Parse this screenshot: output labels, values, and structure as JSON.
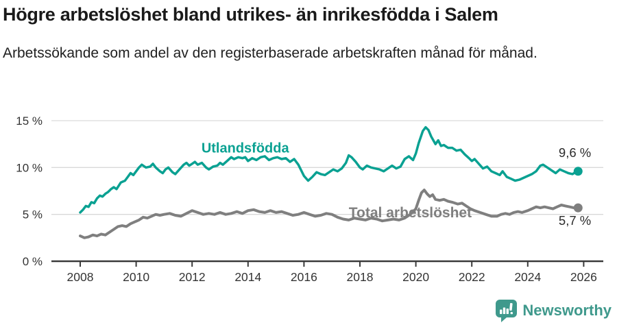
{
  "header": {
    "title": "Högre arbetslöshet bland utrikes- än inrikesfödda i Salem",
    "subtitle": "Arbetssökande som andel av den registerbaserade arbetskraften månad för månad."
  },
  "chart_data": {
    "type": "line",
    "grid": true,
    "legend_position": "inline-labels",
    "x_ticks": [
      2008,
      2010,
      2012,
      2014,
      2016,
      2018,
      2020,
      2022,
      2024,
      2026
    ],
    "xlim": [
      2007.0,
      2026.7
    ],
    "ylim": [
      0,
      15.8
    ],
    "y_ticks": [
      {
        "value": 0,
        "label": "0 %"
      },
      {
        "value": 5,
        "label": "5 %"
      },
      {
        "value": 10,
        "label": "10 %"
      },
      {
        "value": 15,
        "label": "15 %"
      }
    ],
    "series": [
      {
        "id": "utlandsfodda",
        "name": "Utlandsfödda",
        "color": "#0aa192",
        "end_label": "9,6 %",
        "end_value": 9.6,
        "label_anchor": {
          "x": 2013.9,
          "y": 11.6
        },
        "points": [
          [
            2008.0,
            5.2
          ],
          [
            2008.1,
            5.5
          ],
          [
            2008.2,
            5.9
          ],
          [
            2008.3,
            5.8
          ],
          [
            2008.4,
            6.3
          ],
          [
            2008.5,
            6.2
          ],
          [
            2008.6,
            6.7
          ],
          [
            2008.7,
            7.0
          ],
          [
            2008.8,
            6.9
          ],
          [
            2008.9,
            7.2
          ],
          [
            2009.0,
            7.4
          ],
          [
            2009.1,
            7.7
          ],
          [
            2009.2,
            7.9
          ],
          [
            2009.3,
            7.7
          ],
          [
            2009.45,
            8.4
          ],
          [
            2009.6,
            8.6
          ],
          [
            2009.7,
            9.0
          ],
          [
            2009.8,
            9.4
          ],
          [
            2009.9,
            9.2
          ],
          [
            2010.0,
            9.6
          ],
          [
            2010.1,
            10.0
          ],
          [
            2010.2,
            10.3
          ],
          [
            2010.35,
            10.0
          ],
          [
            2010.5,
            10.1
          ],
          [
            2010.6,
            10.4
          ],
          [
            2010.7,
            10.0
          ],
          [
            2010.85,
            9.6
          ],
          [
            2010.95,
            9.4
          ],
          [
            2011.05,
            9.8
          ],
          [
            2011.15,
            10.0
          ],
          [
            2011.3,
            9.5
          ],
          [
            2011.4,
            9.3
          ],
          [
            2011.55,
            9.8
          ],
          [
            2011.7,
            10.3
          ],
          [
            2011.8,
            10.5
          ],
          [
            2011.9,
            10.2
          ],
          [
            2012.0,
            10.4
          ],
          [
            2012.1,
            10.6
          ],
          [
            2012.2,
            10.3
          ],
          [
            2012.35,
            10.5
          ],
          [
            2012.5,
            10.0
          ],
          [
            2012.6,
            9.8
          ],
          [
            2012.75,
            10.1
          ],
          [
            2012.9,
            10.2
          ],
          [
            2013.0,
            10.5
          ],
          [
            2013.1,
            10.3
          ],
          [
            2013.25,
            10.7
          ],
          [
            2013.4,
            11.1
          ],
          [
            2013.5,
            10.9
          ],
          [
            2013.65,
            11.1
          ],
          [
            2013.8,
            11.0
          ],
          [
            2013.9,
            11.1
          ],
          [
            2014.0,
            10.7
          ],
          [
            2014.15,
            11.0
          ],
          [
            2014.3,
            10.8
          ],
          [
            2014.45,
            11.1
          ],
          [
            2014.6,
            11.2
          ],
          [
            2014.75,
            10.8
          ],
          [
            2014.9,
            11.0
          ],
          [
            2015.05,
            11.1
          ],
          [
            2015.2,
            10.9
          ],
          [
            2015.35,
            11.0
          ],
          [
            2015.5,
            10.6
          ],
          [
            2015.65,
            10.9
          ],
          [
            2015.8,
            10.3
          ],
          [
            2015.9,
            9.7
          ],
          [
            2016.0,
            9.1
          ],
          [
            2016.15,
            8.6
          ],
          [
            2016.3,
            9.0
          ],
          [
            2016.45,
            9.5
          ],
          [
            2016.6,
            9.3
          ],
          [
            2016.75,
            9.2
          ],
          [
            2016.9,
            9.5
          ],
          [
            2017.05,
            9.8
          ],
          [
            2017.2,
            9.6
          ],
          [
            2017.35,
            9.9
          ],
          [
            2017.5,
            10.5
          ],
          [
            2017.6,
            11.3
          ],
          [
            2017.7,
            11.1
          ],
          [
            2017.85,
            10.6
          ],
          [
            2018.0,
            10.0
          ],
          [
            2018.1,
            9.8
          ],
          [
            2018.25,
            10.2
          ],
          [
            2018.4,
            10.0
          ],
          [
            2018.55,
            9.9
          ],
          [
            2018.7,
            9.8
          ],
          [
            2018.85,
            9.6
          ],
          [
            2019.0,
            9.9
          ],
          [
            2019.15,
            10.2
          ],
          [
            2019.3,
            9.9
          ],
          [
            2019.45,
            10.1
          ],
          [
            2019.6,
            10.9
          ],
          [
            2019.75,
            11.2
          ],
          [
            2019.9,
            10.8
          ],
          [
            2020.0,
            11.5
          ],
          [
            2020.1,
            12.6
          ],
          [
            2020.25,
            13.9
          ],
          [
            2020.35,
            14.3
          ],
          [
            2020.45,
            14.0
          ],
          [
            2020.55,
            13.3
          ],
          [
            2020.7,
            12.5
          ],
          [
            2020.8,
            12.9
          ],
          [
            2020.9,
            12.3
          ],
          [
            2021.0,
            12.4
          ],
          [
            2021.15,
            12.1
          ],
          [
            2021.3,
            12.1
          ],
          [
            2021.45,
            11.8
          ],
          [
            2021.6,
            11.9
          ],
          [
            2021.75,
            11.4
          ],
          [
            2021.9,
            11.0
          ],
          [
            2022.0,
            10.7
          ],
          [
            2022.1,
            10.9
          ],
          [
            2022.25,
            10.4
          ],
          [
            2022.4,
            9.9
          ],
          [
            2022.55,
            10.1
          ],
          [
            2022.7,
            9.6
          ],
          [
            2022.85,
            9.4
          ],
          [
            2023.0,
            9.2
          ],
          [
            2023.1,
            9.6
          ],
          [
            2023.25,
            9.0
          ],
          [
            2023.4,
            8.8
          ],
          [
            2023.55,
            8.6
          ],
          [
            2023.7,
            8.7
          ],
          [
            2023.85,
            8.9
          ],
          [
            2024.0,
            9.1
          ],
          [
            2024.15,
            9.3
          ],
          [
            2024.3,
            9.6
          ],
          [
            2024.45,
            10.2
          ],
          [
            2024.55,
            10.3
          ],
          [
            2024.7,
            10.0
          ],
          [
            2024.85,
            9.7
          ],
          [
            2025.0,
            9.4
          ],
          [
            2025.15,
            9.8
          ],
          [
            2025.3,
            9.6
          ],
          [
            2025.45,
            9.4
          ],
          [
            2025.6,
            9.3
          ],
          [
            2025.7,
            9.5
          ],
          [
            2025.8,
            9.6
          ]
        ]
      },
      {
        "id": "total-arbetsloshet",
        "name": "Total arbetslöshet",
        "color": "#7f7f7f",
        "end_label": "5,7 %",
        "end_value": 5.7,
        "label_anchor": {
          "x": 2019.8,
          "y": 4.7
        },
        "points": [
          [
            2008.0,
            2.7
          ],
          [
            2008.15,
            2.5
          ],
          [
            2008.3,
            2.6
          ],
          [
            2008.45,
            2.8
          ],
          [
            2008.6,
            2.7
          ],
          [
            2008.75,
            2.9
          ],
          [
            2008.9,
            2.8
          ],
          [
            2009.05,
            3.1
          ],
          [
            2009.2,
            3.4
          ],
          [
            2009.35,
            3.7
          ],
          [
            2009.5,
            3.8
          ],
          [
            2009.65,
            3.7
          ],
          [
            2009.8,
            4.0
          ],
          [
            2009.95,
            4.2
          ],
          [
            2010.1,
            4.4
          ],
          [
            2010.25,
            4.7
          ],
          [
            2010.4,
            4.6
          ],
          [
            2010.55,
            4.8
          ],
          [
            2010.7,
            5.0
          ],
          [
            2010.85,
            4.9
          ],
          [
            2011.0,
            5.0
          ],
          [
            2011.2,
            5.1
          ],
          [
            2011.4,
            4.9
          ],
          [
            2011.6,
            4.8
          ],
          [
            2011.8,
            5.1
          ],
          [
            2012.0,
            5.4
          ],
          [
            2012.2,
            5.2
          ],
          [
            2012.4,
            5.0
          ],
          [
            2012.6,
            5.1
          ],
          [
            2012.8,
            5.0
          ],
          [
            2013.0,
            5.2
          ],
          [
            2013.2,
            5.0
          ],
          [
            2013.4,
            5.1
          ],
          [
            2013.6,
            5.3
          ],
          [
            2013.8,
            5.1
          ],
          [
            2014.0,
            5.4
          ],
          [
            2014.2,
            5.5
          ],
          [
            2014.4,
            5.3
          ],
          [
            2014.6,
            5.2
          ],
          [
            2014.8,
            5.4
          ],
          [
            2015.0,
            5.2
          ],
          [
            2015.2,
            5.3
          ],
          [
            2015.4,
            5.1
          ],
          [
            2015.6,
            4.9
          ],
          [
            2015.8,
            5.0
          ],
          [
            2016.0,
            5.2
          ],
          [
            2016.2,
            5.0
          ],
          [
            2016.4,
            4.8
          ],
          [
            2016.6,
            4.9
          ],
          [
            2016.8,
            5.1
          ],
          [
            2017.0,
            5.0
          ],
          [
            2017.2,
            4.7
          ],
          [
            2017.4,
            4.5
          ],
          [
            2017.6,
            4.4
          ],
          [
            2017.8,
            4.6
          ],
          [
            2018.0,
            4.5
          ],
          [
            2018.2,
            4.4
          ],
          [
            2018.4,
            4.6
          ],
          [
            2018.6,
            4.5
          ],
          [
            2018.8,
            4.3
          ],
          [
            2019.0,
            4.4
          ],
          [
            2019.2,
            4.5
          ],
          [
            2019.4,
            4.4
          ],
          [
            2019.6,
            4.6
          ],
          [
            2019.8,
            5.0
          ],
          [
            2020.0,
            5.6
          ],
          [
            2020.1,
            6.5
          ],
          [
            2020.2,
            7.3
          ],
          [
            2020.3,
            7.6
          ],
          [
            2020.4,
            7.2
          ],
          [
            2020.5,
            6.9
          ],
          [
            2020.6,
            7.1
          ],
          [
            2020.7,
            6.6
          ],
          [
            2020.85,
            6.5
          ],
          [
            2021.0,
            6.6
          ],
          [
            2021.15,
            6.4
          ],
          [
            2021.3,
            6.3
          ],
          [
            2021.5,
            6.1
          ],
          [
            2021.65,
            6.2
          ],
          [
            2021.8,
            5.9
          ],
          [
            2021.95,
            5.6
          ],
          [
            2022.1,
            5.4
          ],
          [
            2022.3,
            5.2
          ],
          [
            2022.5,
            5.0
          ],
          [
            2022.7,
            4.8
          ],
          [
            2022.9,
            4.8
          ],
          [
            2023.05,
            5.0
          ],
          [
            2023.2,
            5.1
          ],
          [
            2023.35,
            5.0
          ],
          [
            2023.5,
            5.2
          ],
          [
            2023.65,
            5.3
          ],
          [
            2023.8,
            5.2
          ],
          [
            2024.0,
            5.4
          ],
          [
            2024.15,
            5.6
          ],
          [
            2024.3,
            5.8
          ],
          [
            2024.45,
            5.7
          ],
          [
            2024.6,
            5.8
          ],
          [
            2024.75,
            5.7
          ],
          [
            2024.9,
            5.6
          ],
          [
            2025.05,
            5.8
          ],
          [
            2025.2,
            6.0
          ],
          [
            2025.35,
            5.9
          ],
          [
            2025.5,
            5.8
          ],
          [
            2025.65,
            5.7
          ],
          [
            2025.8,
            5.7
          ]
        ]
      }
    ]
  },
  "footer": {
    "brand": "Newsworthy"
  },
  "colors": {
    "accent_teal": "#0aa192",
    "series_gray": "#7f7f7f",
    "logo_teal": "#3f998c",
    "grid": "#d9d9d9",
    "axis": "#3a3a3a",
    "text_dark": "#1a1a1a"
  }
}
